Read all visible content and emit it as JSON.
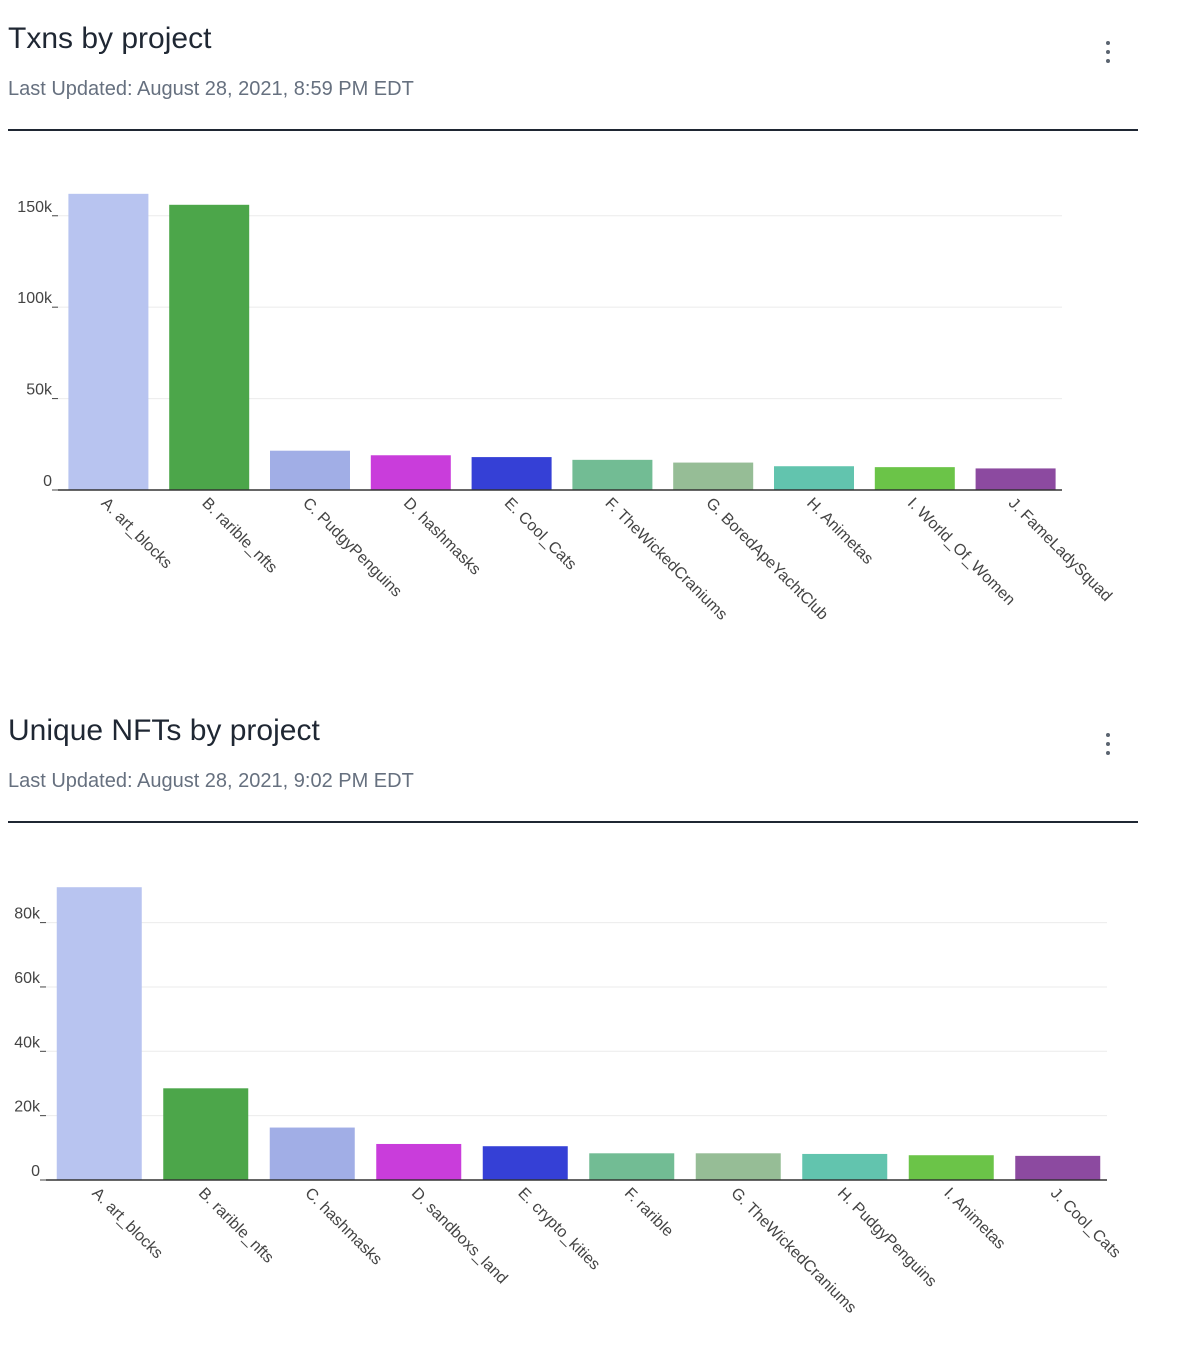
{
  "panels": [
    {
      "title": "Txns by project",
      "updated": "Last Updated: August 28, 2021, 8:59 PM EDT",
      "menu_icon": "kebab-menu-icon"
    },
    {
      "title": "Unique NFTs by project",
      "updated": "Last Updated: August 28, 2021, 9:02 PM EDT",
      "menu_icon": "kebab-menu-icon"
    }
  ],
  "chart_data": [
    {
      "type": "bar",
      "categories": [
        "A. art_blocks",
        "B. rarible_nfts",
        "C. PudgyPenguins",
        "D. hashmasks",
        "E. Cool_Cats",
        "F. TheWickedCraniums",
        "G. BoredApeYachtClub",
        "H. Animetas",
        "I. World_Of_Women",
        "J. FameLadySquad"
      ],
      "values": [
        162000,
        156000,
        21500,
        19000,
        18000,
        16500,
        15000,
        13000,
        12500,
        11800
      ],
      "colors": [
        "#b8c4f0",
        "#4ca64a",
        "#a1aee6",
        "#c93ddb",
        "#3540d6",
        "#72bc94",
        "#96bd96",
        "#62c4ae",
        "#6bc448",
        "#8c4aa0"
      ],
      "yticks": [
        0,
        50000,
        100000,
        150000
      ],
      "ytick_labels": [
        "0",
        "50k",
        "100k",
        "150k"
      ],
      "ylim": [
        0,
        163000
      ],
      "grid": true,
      "title": "",
      "xlabel": "",
      "ylabel": ""
    },
    {
      "type": "bar",
      "categories": [
        "A. art_blocks",
        "B. rarible_nfts",
        "C. hashmasks",
        "D. sandboxs_land",
        "E. crypto_kities",
        "F. rarible",
        "G. TheWickedCraniums",
        "H. PudgyPenguins",
        "I. Animetas",
        "J. Cool_Cats"
      ],
      "values": [
        91000,
        28500,
        16300,
        11200,
        10500,
        8300,
        8300,
        8100,
        7700,
        7500
      ],
      "colors": [
        "#b8c4f0",
        "#4ca64a",
        "#a1aee6",
        "#c93ddb",
        "#3540d6",
        "#72bc94",
        "#96bd96",
        "#62c4ae",
        "#6bc448",
        "#8c4aa0"
      ],
      "yticks": [
        0,
        20000,
        40000,
        60000,
        80000
      ],
      "ytick_labels": [
        "0",
        "20k",
        "40k",
        "60k",
        "80k"
      ],
      "ylim": [
        0,
        92000
      ],
      "grid": true,
      "title": "",
      "xlabel": "",
      "ylabel": ""
    }
  ]
}
